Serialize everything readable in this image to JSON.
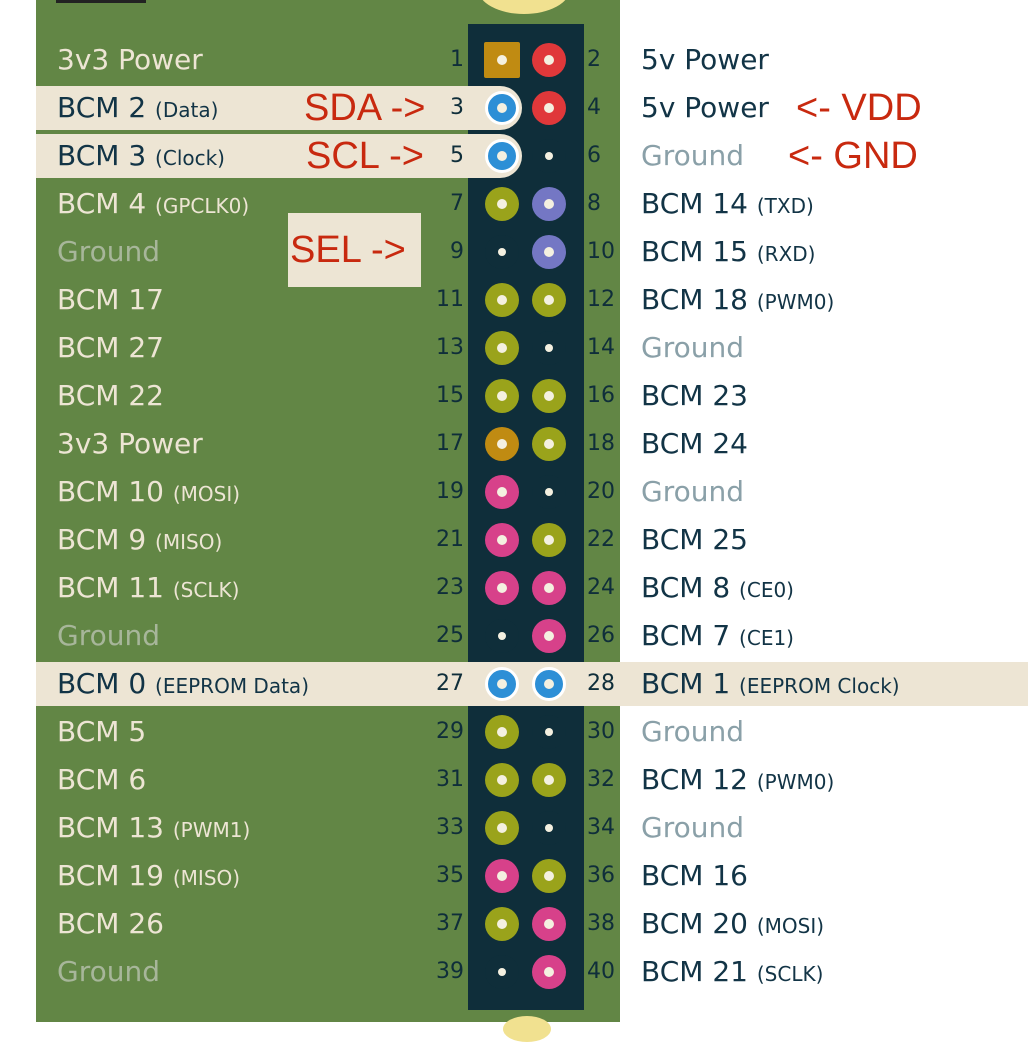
{
  "colors": {
    "board": "#628645",
    "header": "#0f2e3a",
    "highlight": "#ede5d4",
    "annotation": "#c8290f",
    "power_3v3": "#c08b12",
    "power_5v": "#e0383a",
    "gpio": "#9aa31b",
    "ground": "#0f2e3a",
    "uart": "#7477c4",
    "spi": "#d7418a",
    "i2c": "#2d8fd6"
  },
  "annotations": {
    "sda": "SDA ->",
    "scl": "SCL ->",
    "sel": "SEL ->",
    "vdd": "<- VDD",
    "gnd": "<- GND"
  },
  "rows": [
    {
      "ln": "1",
      "rn": "2",
      "left": "3v3 Power",
      "left_sub": "",
      "right": "5v Power",
      "right_sub": "",
      "lp": "power_3v3",
      "rp": "power_5v",
      "hl": "",
      "lshape": "square"
    },
    {
      "ln": "3",
      "rn": "4",
      "left": "BCM 2",
      "left_sub": "(Data)",
      "right": "5v Power",
      "right_sub": "",
      "lp": "i2c",
      "rp": "power_5v",
      "hl": "left"
    },
    {
      "ln": "5",
      "rn": "6",
      "left": "BCM 3",
      "left_sub": "(Clock)",
      "right": "Ground",
      "right_sub": "",
      "lp": "i2c",
      "rp": "ground",
      "hl": "left"
    },
    {
      "ln": "7",
      "rn": "8",
      "left": "BCM 4",
      "left_sub": "(GPCLK0)",
      "right": "BCM 14",
      "right_sub": "(TXD)",
      "lp": "gpio",
      "rp": "uart",
      "hl": ""
    },
    {
      "ln": "9",
      "rn": "10",
      "left": "Ground",
      "left_sub": "",
      "right": "BCM 15",
      "right_sub": "(RXD)",
      "lp": "ground",
      "rp": "uart",
      "hl": ""
    },
    {
      "ln": "11",
      "rn": "12",
      "left": "BCM 17",
      "left_sub": "",
      "right": "BCM 18",
      "right_sub": "(PWM0)",
      "lp": "gpio",
      "rp": "gpio",
      "hl": ""
    },
    {
      "ln": "13",
      "rn": "14",
      "left": "BCM 27",
      "left_sub": "",
      "right": "Ground",
      "right_sub": "",
      "lp": "gpio",
      "rp": "ground",
      "hl": ""
    },
    {
      "ln": "15",
      "rn": "16",
      "left": "BCM 22",
      "left_sub": "",
      "right": "BCM 23",
      "right_sub": "",
      "lp": "gpio",
      "rp": "gpio",
      "hl": ""
    },
    {
      "ln": "17",
      "rn": "18",
      "left": "3v3 Power",
      "left_sub": "",
      "right": "BCM 24",
      "right_sub": "",
      "lp": "power_3v3",
      "rp": "gpio",
      "hl": ""
    },
    {
      "ln": "19",
      "rn": "20",
      "left": "BCM 10",
      "left_sub": "(MOSI)",
      "right": "Ground",
      "right_sub": "",
      "lp": "spi",
      "rp": "ground",
      "hl": ""
    },
    {
      "ln": "21",
      "rn": "22",
      "left": "BCM 9",
      "left_sub": "(MISO)",
      "right": "BCM 25",
      "right_sub": "",
      "lp": "spi",
      "rp": "gpio",
      "hl": ""
    },
    {
      "ln": "23",
      "rn": "24",
      "left": "BCM 11",
      "left_sub": "(SCLK)",
      "right": "BCM 8",
      "right_sub": "(CE0)",
      "lp": "spi",
      "rp": "spi",
      "hl": ""
    },
    {
      "ln": "25",
      "rn": "26",
      "left": "Ground",
      "left_sub": "",
      "right": "BCM 7",
      "right_sub": "(CE1)",
      "lp": "ground",
      "rp": "spi",
      "hl": ""
    },
    {
      "ln": "27",
      "rn": "28",
      "left": "BCM 0",
      "left_sub": "(EEPROM Data)",
      "right": "BCM 1",
      "right_sub": "(EEPROM Clock)",
      "lp": "i2c",
      "rp": "i2c",
      "hl": "full"
    },
    {
      "ln": "29",
      "rn": "30",
      "left": "BCM 5",
      "left_sub": "",
      "right": "Ground",
      "right_sub": "",
      "lp": "gpio",
      "rp": "ground",
      "hl": ""
    },
    {
      "ln": "31",
      "rn": "32",
      "left": "BCM 6",
      "left_sub": "",
      "right": "BCM 12",
      "right_sub": "(PWM0)",
      "lp": "gpio",
      "rp": "gpio",
      "hl": ""
    },
    {
      "ln": "33",
      "rn": "34",
      "left": "BCM 13",
      "left_sub": "(PWM1)",
      "right": "Ground",
      "right_sub": "",
      "lp": "gpio",
      "rp": "ground",
      "hl": ""
    },
    {
      "ln": "35",
      "rn": "36",
      "left": "BCM 19",
      "left_sub": "(MISO)",
      "right": "BCM 16",
      "right_sub": "",
      "lp": "spi",
      "rp": "gpio",
      "hl": ""
    },
    {
      "ln": "37",
      "rn": "38",
      "left": "BCM 26",
      "left_sub": "",
      "right": "BCM 20",
      "right_sub": "(MOSI)",
      "lp": "gpio",
      "rp": "spi",
      "hl": ""
    },
    {
      "ln": "39",
      "rn": "40",
      "left": "Ground",
      "left_sub": "",
      "right": "BCM 21",
      "right_sub": "(SCLK)",
      "lp": "ground",
      "rp": "spi",
      "hl": ""
    }
  ]
}
